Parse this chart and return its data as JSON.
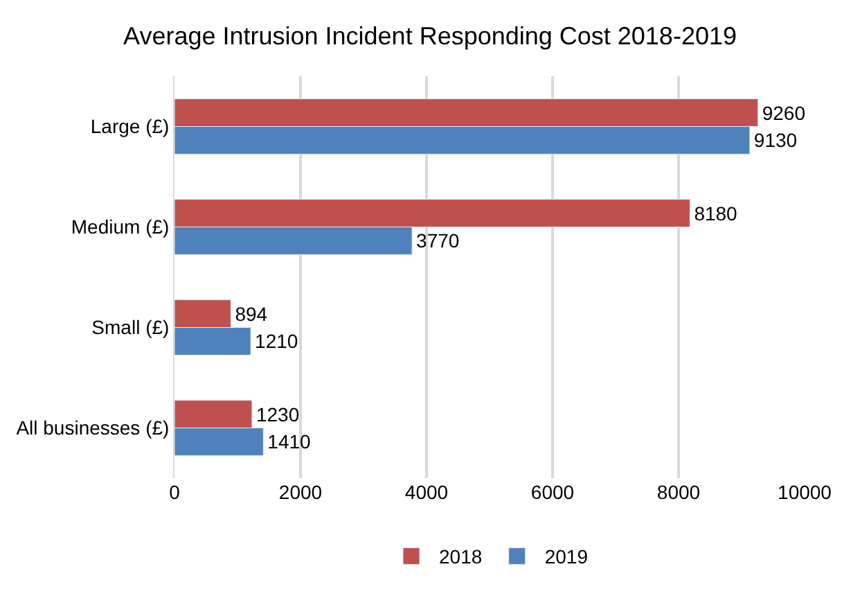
{
  "chart_data": {
    "type": "bar",
    "orientation": "horizontal",
    "title": "Average Intrusion Incident Responding Cost 2018-2019",
    "categories": [
      "Large (£)",
      "Medium (£)",
      "Small (£)",
      "All businesses (£)"
    ],
    "series": [
      {
        "name": "2018",
        "color": "#c0504d",
        "values": [
          9260,
          8180,
          894,
          1230
        ]
      },
      {
        "name": "2019",
        "color": "#4f81bd",
        "values": [
          9130,
          3770,
          1210,
          1410
        ]
      }
    ],
    "xlim": [
      0,
      10000
    ],
    "xticks": [
      0,
      2000,
      4000,
      6000,
      8000,
      10000
    ],
    "grid": "x",
    "legend": "bottom",
    "data_labels": true
  }
}
